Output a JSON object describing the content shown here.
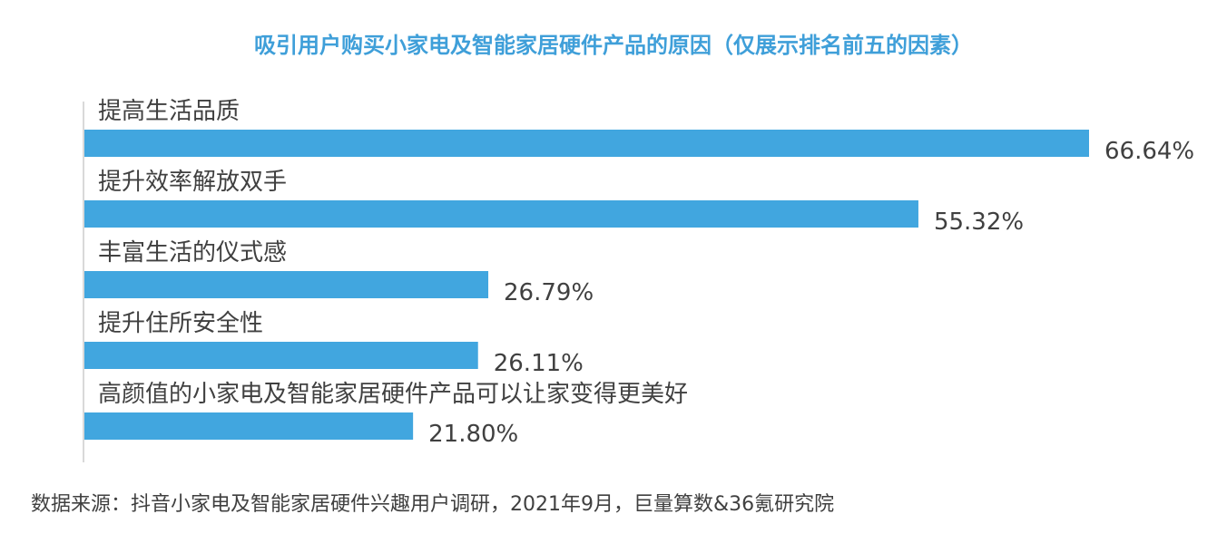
{
  "chart_data": {
    "type": "bar",
    "orientation": "horizontal",
    "title": "吸引用户购买小家电及智能家居硬件产品的原因（仅展示排名前五的因素）",
    "categories": [
      "提高生活品质",
      "提升效率解放双手",
      "丰富生活的仪式感",
      "提升住所安全性",
      "高颜值的小家电及智能家居硬件产品可以让家变得更美好"
    ],
    "values": [
      66.64,
      55.32,
      26.79,
      26.11,
      21.8
    ],
    "value_labels": [
      "66.64%",
      "55.32%",
      "26.79%",
      "26.11%",
      "21.80%"
    ],
    "xlim": [
      0,
      66.64
    ],
    "grid": false,
    "legend": "none"
  },
  "colors": {
    "bar": "#41a6df",
    "title": "#3f9fd9",
    "text": "#404040",
    "axis": "#d9d9d9"
  },
  "source": "数据来源：抖音小家电及智能家居硬件兴趣用户调研，2021年9月，巨量算数&36氪研究院"
}
